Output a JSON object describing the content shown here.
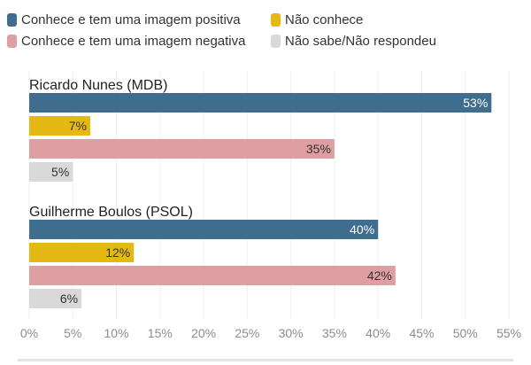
{
  "legend": [
    {
      "label": "Conhece e tem uma imagem positiva",
      "color": "#3e6d8e"
    },
    {
      "label": "Não conhece",
      "color": "#e5b813"
    },
    {
      "label": "Conhece e tem uma imagem negativa",
      "color": "#de9fa3"
    },
    {
      "label": "Não sabe/Não respondeu",
      "color": "#d9d9d9"
    }
  ],
  "chart_data": {
    "type": "bar",
    "orientation": "horizontal",
    "groups": [
      {
        "name": "Ricardo Nunes (MDB)",
        "values": [
          53,
          7,
          35,
          5
        ],
        "labels": [
          "53%",
          "7%",
          "35%",
          "5%"
        ]
      },
      {
        "name": "Guilherme Boulos (PSOL)",
        "values": [
          40,
          12,
          42,
          6
        ],
        "labels": [
          "40%",
          "12%",
          "42%",
          "6%"
        ]
      }
    ],
    "series": [
      "Conhece e tem uma imagem positiva",
      "Não conhece",
      "Conhece e tem uma imagem negativa",
      "Não sabe/Não respondeu"
    ],
    "x_ticks": [
      "0%",
      "5%",
      "10%",
      "15%",
      "20%",
      "25%",
      "30%",
      "35%",
      "40%",
      "45%",
      "50%",
      "55%"
    ],
    "xlim": [
      0,
      55
    ],
    "grid": true,
    "legend_position": "top"
  }
}
